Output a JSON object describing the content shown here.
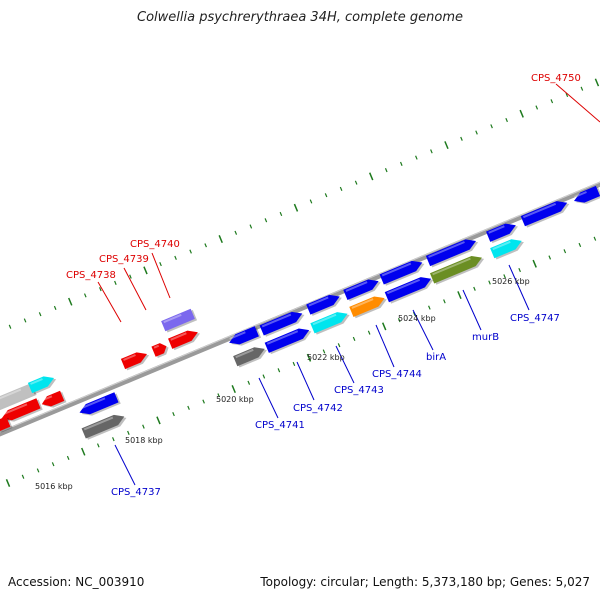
{
  "title": "Colwellia psychrerythraea 34H, complete genome",
  "footer": {
    "accession": "Accession: NC_003910",
    "summary": "Topology: circular; Length: 5,373,180 bp; Genes: 5,027"
  },
  "kbp_labels": [
    "5016 kbp",
    "5018 kbp",
    "5020 kbp",
    "5022 kbp",
    "5024 kbp",
    "5026 kbp"
  ],
  "gene_labels_blue": [
    "CPS_4737",
    "CPS_4741",
    "CPS_4742",
    "CPS_4743",
    "CPS_4744",
    "birA",
    "murB",
    "CPS_4747"
  ],
  "gene_labels_red": [
    "CPS_4738",
    "CPS_4739",
    "CPS_4740",
    "CPS_4750"
  ],
  "colors": {
    "cds_blue": "#0000ee",
    "cds_red": "#ee0000",
    "cyan": "#00e5ee",
    "gray": "#666666",
    "orange": "#ff8c00",
    "olive": "#6b8e23",
    "purple": "#7b68ee",
    "tick_green": "#1e7a1e",
    "label_blue": "#0000cc",
    "label_red": "#dd0000"
  }
}
